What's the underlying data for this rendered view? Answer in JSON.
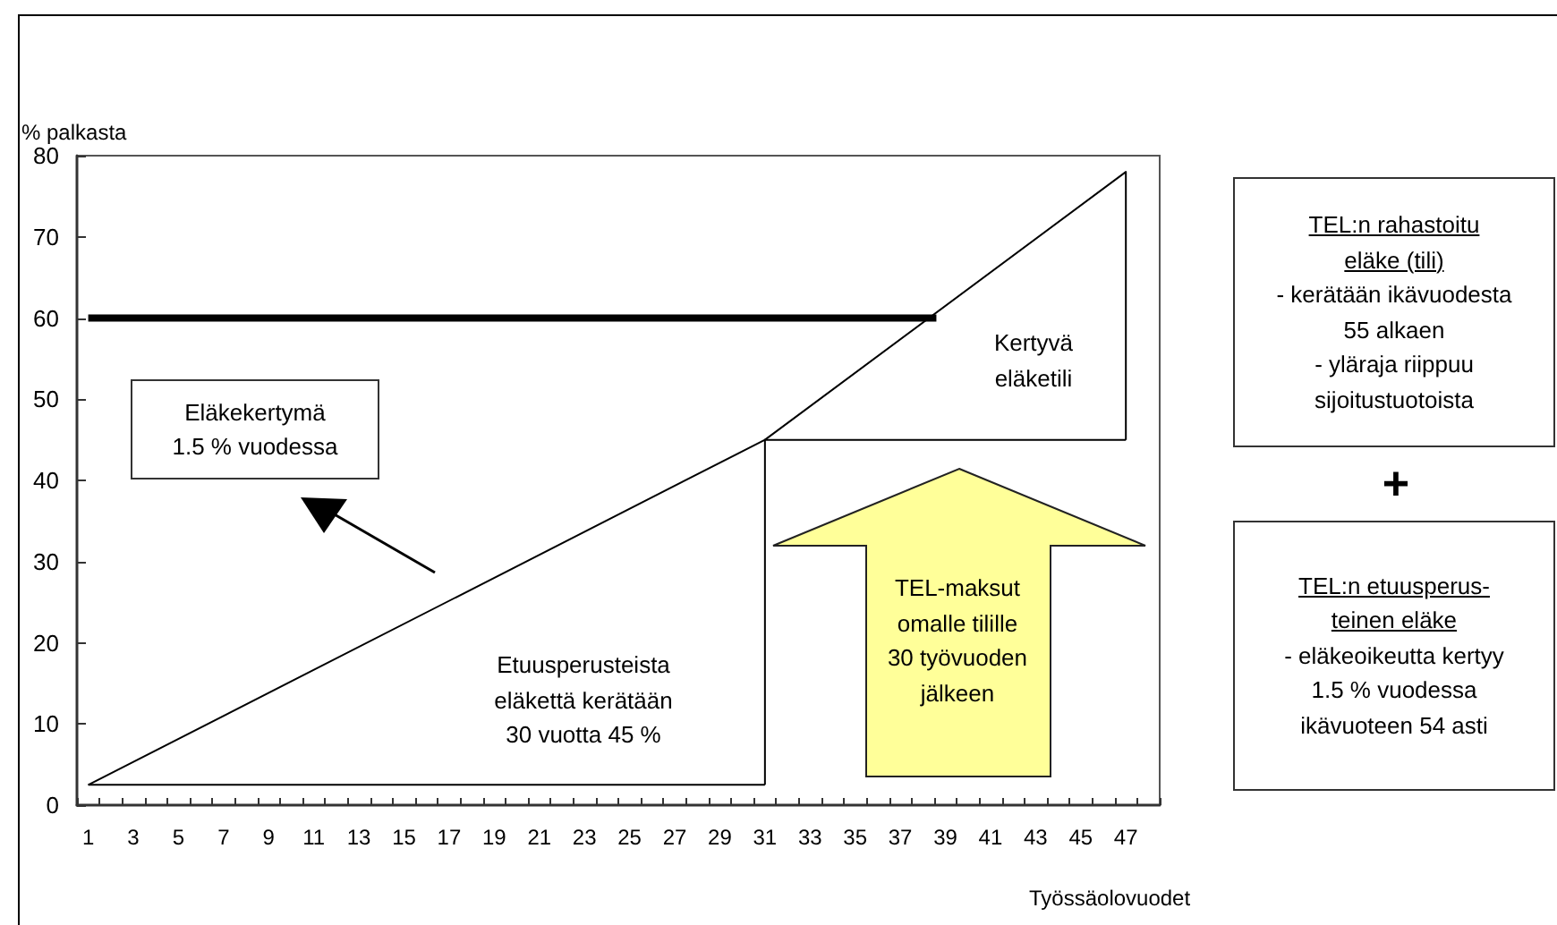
{
  "chart_data": {
    "type": "line",
    "ylabel": "% palkasta",
    "xlabel": "Työssäolovuodet",
    "xlim": [
      0.5,
      48.5
    ],
    "xticks": [
      1,
      3,
      5,
      7,
      9,
      11,
      13,
      15,
      17,
      19,
      21,
      23,
      25,
      27,
      29,
      31,
      33,
      35,
      37,
      39,
      41,
      43,
      45,
      47,
      {
        "value": 0.5,
        "label": null
      },
      {
        "value": 1.5,
        "label": null
      },
      {
        "value": 2.5,
        "label": null
      },
      {
        "value": 3.5,
        "label": null
      },
      {
        "value": 4.5,
        "label": null
      },
      {
        "value": 5.5,
        "label": null
      },
      {
        "value": 6.5,
        "label": null
      },
      {
        "value": 7.5,
        "label": null
      },
      {
        "value": 8.5,
        "label": null
      },
      {
        "value": 9.5,
        "label": null
      },
      {
        "value": 10.5,
        "label": null
      },
      {
        "value": 11.5,
        "label": null
      },
      {
        "value": 12.5,
        "label": null
      },
      {
        "value": 13.5,
        "label": null
      },
      {
        "value": 14.5,
        "label": null
      },
      {
        "value": 15.5,
        "label": null
      },
      {
        "value": 16.5,
        "label": null
      },
      {
        "value": 17.5,
        "label": null
      },
      {
        "value": 18.5,
        "label": null
      },
      {
        "value": 19.5,
        "label": null
      },
      {
        "value": 20.5,
        "label": null
      },
      {
        "value": 21.5,
        "label": null
      },
      {
        "value": 22.5,
        "label": null
      },
      {
        "value": 23.5,
        "label": null
      },
      {
        "value": 24.5,
        "label": null
      },
      {
        "value": 25.5,
        "label": null
      },
      {
        "value": 26.5,
        "label": null
      },
      {
        "value": 27.5,
        "label": null
      },
      {
        "value": 28.5,
        "label": null
      },
      {
        "value": 29.5,
        "label": null
      },
      {
        "value": 30.5,
        "label": null
      },
      {
        "value": 31.5,
        "label": null
      },
      {
        "value": 32.5,
        "label": null
      },
      {
        "value": 33.5,
        "label": null
      },
      {
        "value": 34.5,
        "label": null
      },
      {
        "value": 35.5,
        "label": null
      },
      {
        "value": 36.5,
        "label": null
      },
      {
        "value": 37.5,
        "label": null
      },
      {
        "value": 38.5,
        "label": null
      },
      {
        "value": 39.5,
        "label": null
      },
      {
        "value": 40.5,
        "label": null
      },
      {
        "value": 41.5,
        "label": null
      },
      {
        "value": 42.5,
        "label": null
      },
      {
        "value": 43.5,
        "label": null
      },
      {
        "value": 44.5,
        "label": null
      },
      {
        "value": 45.5,
        "label": null
      },
      {
        "value": 46.5,
        "label": null
      },
      {
        "value": 47.5,
        "label": null
      },
      {
        "value": 48.5,
        "label": null
      }
    ],
    "ylim": [
      0,
      80
    ],
    "yticks": [
      0,
      10,
      20,
      30,
      40,
      50,
      60,
      70,
      80
    ],
    "marker": "none",
    "line_style": "solid",
    "series": [
      {
        "color": "#000000",
        "x": [
          1,
          38.6
        ],
        "values": [
          60,
          60
        ]
      },
      {
        "color": "#000000",
        "x": [
          1,
          31,
          31
        ],
        "values": [
          2.5,
          45,
          2.5
        ]
      },
      {
        "color": "#000000",
        "x": [
          1,
          31
        ],
        "values": [
          2.5,
          2.5
        ]
      },
      {
        "color": "#000000",
        "x": [
          31,
          47,
          47
        ],
        "values": [
          45,
          78,
          45
        ]
      },
      {
        "color": "#000000",
        "x": [
          31,
          47
        ],
        "values": [
          45,
          45
        ]
      }
    ],
    "annotations": [
      "Eläkekertymä\n1.5 % vuodessa",
      "Etuusperusteista\neläkettä kerätään\n30 vuotta 45 %",
      "Kertyvä\neläketili",
      "TEL-maksut\nomalle tilille\n30 työvuoden\njälkeen",
      "TEL:n rahastoitu\neläke (tili)",
      "- kerätään ikävuodesta\n55 alkaen\n- yläraja riippuu\nsijoitustuotoista",
      "+",
      "TEL:n etuusperus-\nteinen eläke",
      "- eläkeoikeutta kertyy\n1.5 % vuodessa\nikävuoteen 54 asti"
    ]
  }
}
